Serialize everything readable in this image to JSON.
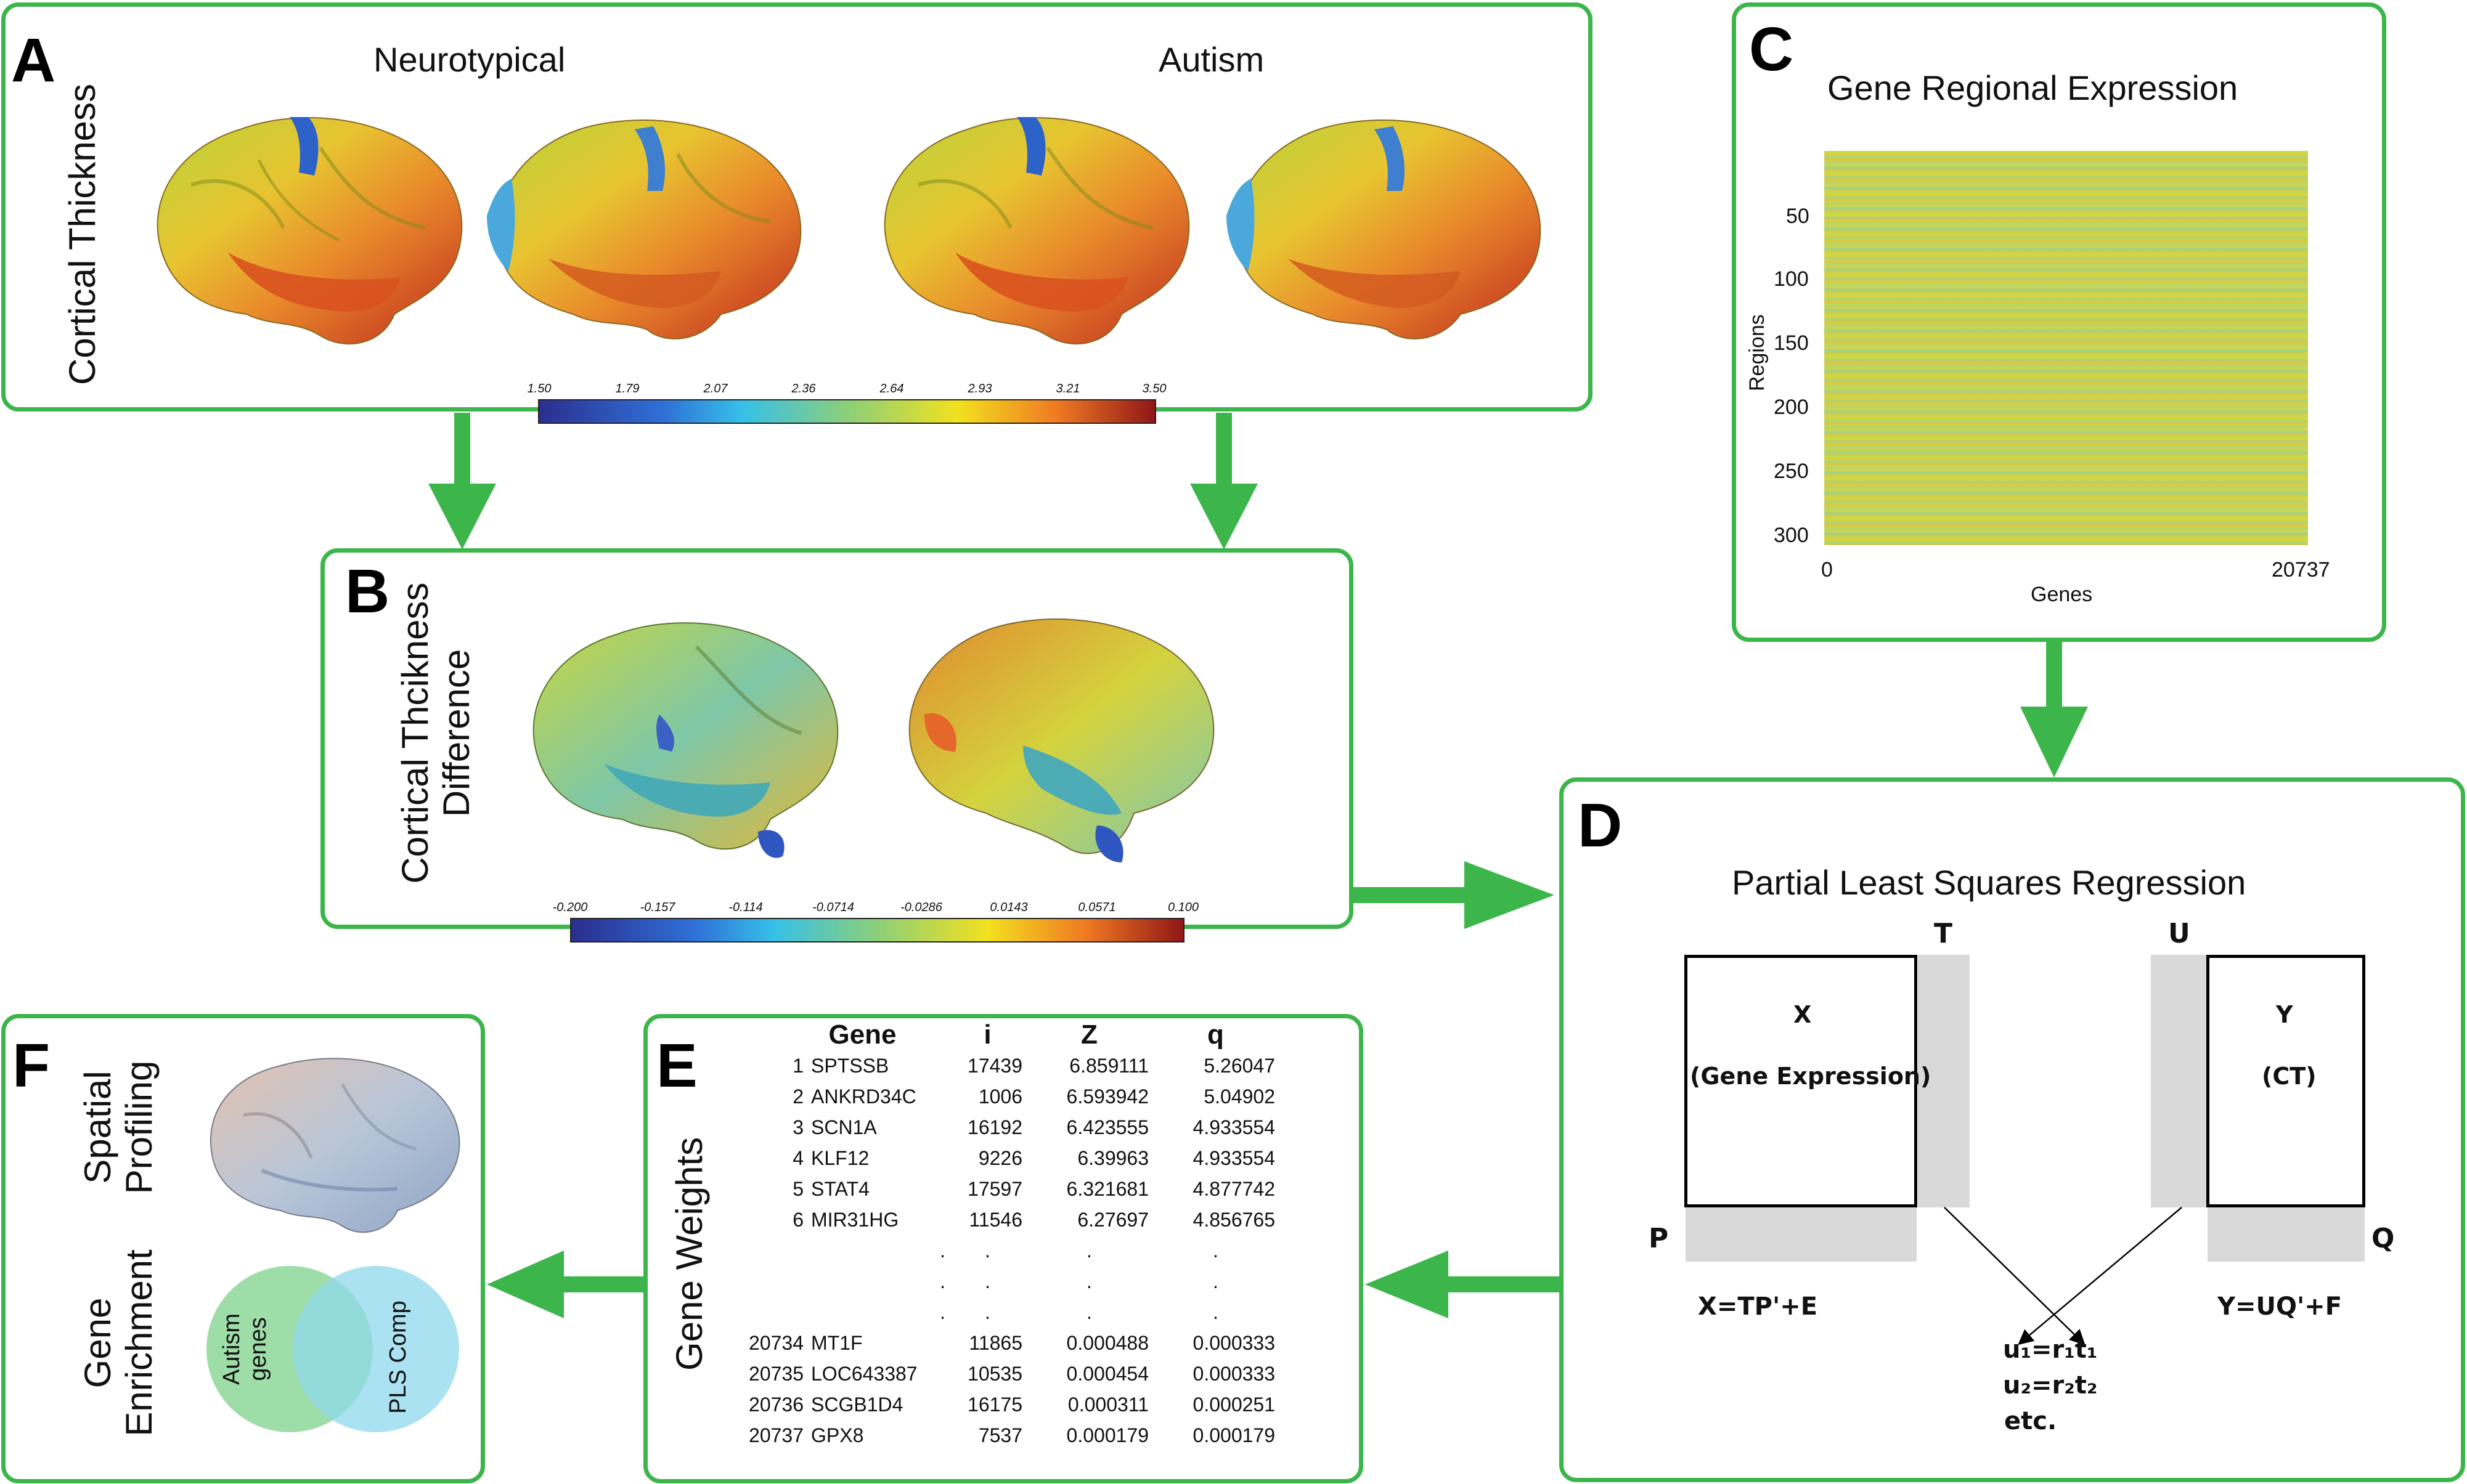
{
  "panel_a": {
    "letter": "A",
    "ylabel": "Cortical Thickness",
    "group_left": "Neurotypical",
    "group_right": "Autism",
    "colorbar_ticks": [
      "1.50",
      "1.79",
      "2.07",
      "2.36",
      "2.64",
      "2.93",
      "3.21",
      "3.50"
    ]
  },
  "panel_b": {
    "letter": "B",
    "ylabel_line1": "Cortical Thcikness",
    "ylabel_line2": "Difference",
    "colorbar_ticks": [
      "-0.200",
      "-0.157",
      "-0.114",
      "-0.0714",
      "-0.0286",
      "0.0143",
      "0.0571",
      "0.100"
    ]
  },
  "panel_c": {
    "letter": "C",
    "title": "Gene Regional Expression",
    "ylabel": "Regions",
    "xlabel": "Genes",
    "y_ticks": [
      "50",
      "100",
      "150",
      "200",
      "250",
      "300"
    ],
    "x_ticks": [
      "0",
      "20737"
    ]
  },
  "panel_d": {
    "letter": "D",
    "title": "Partial Least Squares Regression",
    "x_label": "X",
    "x_sub": "(Gene Expression)",
    "y_label": "Y",
    "y_sub": "(CT)",
    "T": "T",
    "U": "U",
    "P": "P",
    "Q": "Q",
    "eq_x": "X=TP'+E",
    "eq_y": "Y=UQ'+F",
    "eq_u1": "u₁=r₁t₁",
    "eq_u2": "u₂=r₂t₂",
    "eq_etc": "etc."
  },
  "panel_e": {
    "letter": "E",
    "ylabel": "Gene Weights",
    "headers": [
      "Gene",
      "i",
      "Z",
      "q"
    ],
    "rows": [
      [
        "1",
        "SPTSSB",
        "17439",
        "6.859111",
        "5.26047"
      ],
      [
        "2",
        "ANKRD34C",
        "1006",
        "6.593942",
        "5.04902"
      ],
      [
        "3",
        "SCN1A",
        "16192",
        "6.423555",
        "4.933554"
      ],
      [
        "4",
        "KLF12",
        "9226",
        "6.39963",
        "4.933554"
      ],
      [
        "5",
        "STAT4",
        "17597",
        "6.321681",
        "4.877742"
      ],
      [
        "6",
        "MIR31HG",
        "11546",
        "6.27697",
        "4.856765"
      ],
      [
        "20734",
        "MT1F",
        "11865",
        "0.000488",
        "0.000333"
      ],
      [
        "20735",
        "LOC643387",
        "10535",
        "0.000454",
        "0.000333"
      ],
      [
        "20736",
        "SCGB1D4",
        "16175",
        "0.000311",
        "0.000251"
      ],
      [
        "20737",
        "GPX8",
        "7537",
        "0.000179",
        "0.000179"
      ]
    ],
    "ellipsis": "."
  },
  "panel_f": {
    "letter": "F",
    "label1_line1": "Spatial",
    "label1_line2": "Profiling",
    "label2_line1": "Gene",
    "label2_line2": "Enrichment",
    "venn_left_line1": "Autism",
    "venn_left_line2": "genes",
    "venn_right": "PLS Comp"
  },
  "colors": {
    "panel_border": "#3cb54a",
    "arrow": "#3cb54a",
    "venn_left": "#7fd18b",
    "venn_right": "#8fd8ec",
    "shade": "#d9d9d9"
  }
}
